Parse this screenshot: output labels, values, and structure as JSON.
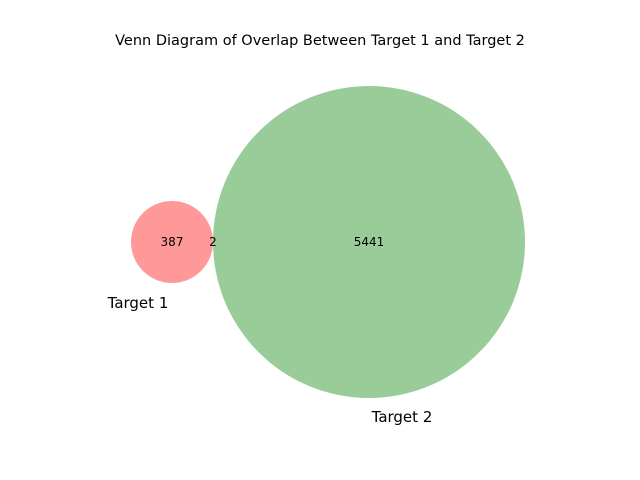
{
  "title": "Venn Diagram of Overlap Between Target 1 and Target 2",
  "chart_data": {
    "type": "venn",
    "title": "Venn Diagram of Overlap Between Target 1 and Target 2",
    "sets": [
      {
        "name": "Target 1",
        "only": 387,
        "color": "#ff9999"
      },
      {
        "name": "Target 2",
        "only": 5441,
        "color": "#99cc99"
      }
    ],
    "intersection": 2
  }
}
